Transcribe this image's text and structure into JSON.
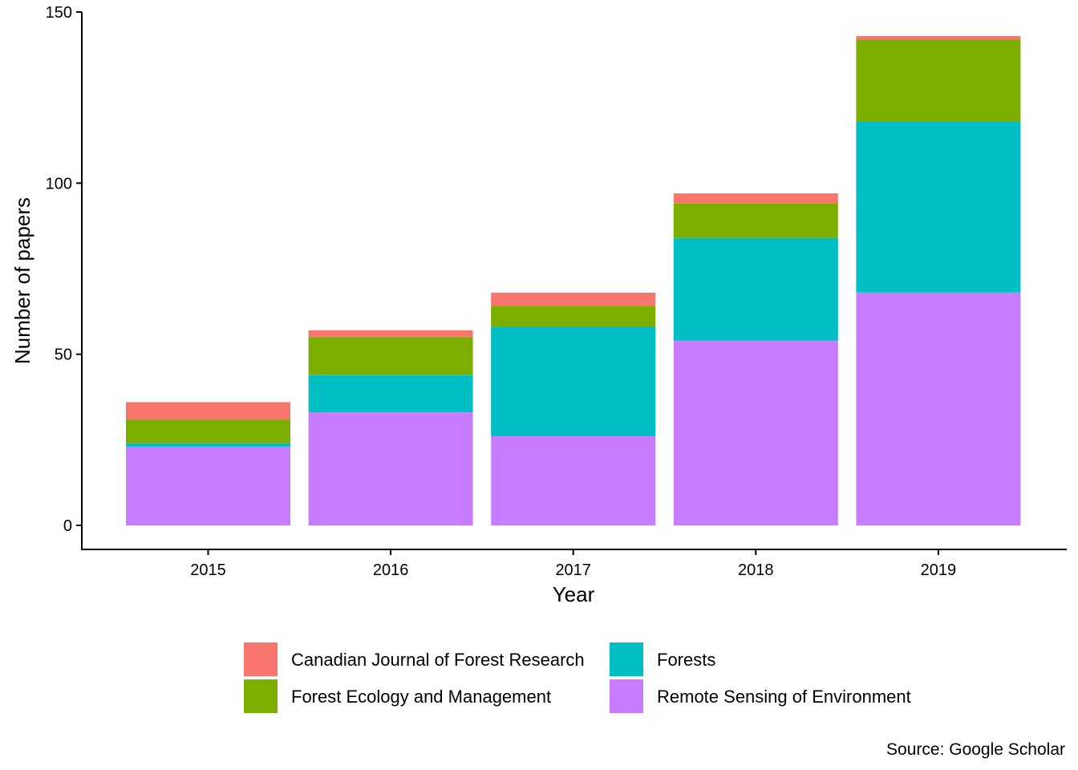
{
  "chart_data": {
    "type": "bar",
    "stacked": true,
    "xlabel": "Year",
    "ylabel": "Number of papers",
    "ylim": [
      0,
      150
    ],
    "yticks": [
      0,
      50,
      100,
      150
    ],
    "categories": [
      "2015",
      "2016",
      "2017",
      "2018",
      "2019"
    ],
    "series": [
      {
        "name": "Remote Sensing of Environment",
        "color": "#C77CFF",
        "values": [
          23,
          33,
          26,
          54,
          68
        ]
      },
      {
        "name": "Forests",
        "color": "#00BFC4",
        "values": [
          1,
          11,
          32,
          30,
          50
        ]
      },
      {
        "name": "Forest Ecology and Management",
        "color": "#7CAE00",
        "values": [
          7,
          11,
          6,
          10,
          24
        ]
      },
      {
        "name": "Canadian Journal of Forest Research",
        "color": "#F8766D",
        "values": [
          5,
          2,
          4,
          3,
          1
        ]
      }
    ],
    "legend": {
      "position": "bottom",
      "order": [
        "Canadian Journal of Forest Research",
        "Forests",
        "Forest Ecology and Management",
        "Remote Sensing of Environment"
      ]
    },
    "grid": false,
    "caption": "Source: Google Scholar"
  }
}
